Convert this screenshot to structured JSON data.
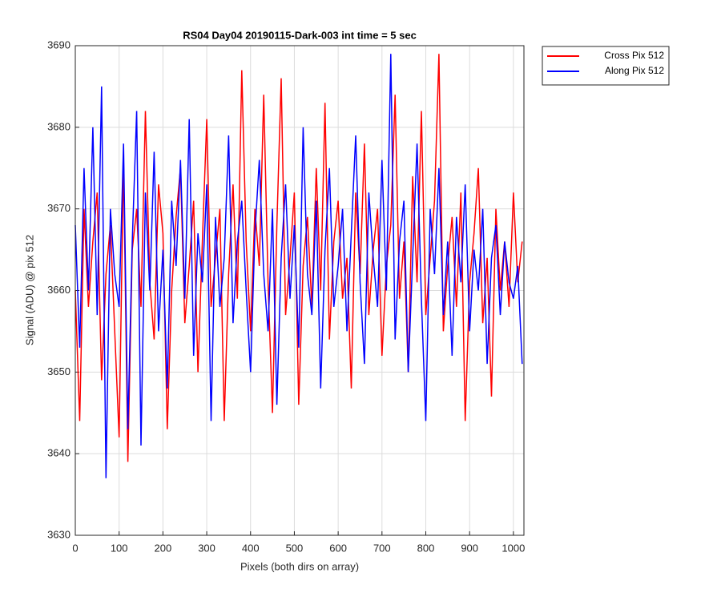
{
  "chart_data": {
    "type": "line",
    "title": "RS04 Day04 20190115-Dark-003 int time = 5 sec",
    "xlabel": "Pixels (both dirs on array)",
    "ylabel": "Signal (ADU) @ pix 512",
    "x": [
      0,
      10,
      20,
      30,
      40,
      50,
      60,
      70,
      80,
      90,
      100,
      110,
      120,
      130,
      140,
      150,
      160,
      170,
      180,
      190,
      200,
      210,
      220,
      230,
      240,
      250,
      260,
      270,
      280,
      290,
      300,
      310,
      320,
      330,
      340,
      350,
      360,
      370,
      380,
      390,
      400,
      410,
      420,
      430,
      440,
      450,
      460,
      470,
      480,
      490,
      500,
      510,
      520,
      530,
      540,
      550,
      560,
      570,
      580,
      590,
      600,
      610,
      620,
      630,
      640,
      650,
      660,
      670,
      680,
      690,
      700,
      710,
      720,
      730,
      740,
      750,
      760,
      770,
      780,
      790,
      800,
      810,
      820,
      830,
      840,
      850,
      860,
      870,
      880,
      890,
      900,
      910,
      920,
      930,
      940,
      950,
      960,
      970,
      980,
      990,
      1000,
      1010,
      1020
    ],
    "series": [
      {
        "name": "Cross Pix 512",
        "color": "#ff0000",
        "values": [
          3660,
          3644,
          3670,
          3658,
          3666,
          3672,
          3649,
          3662,
          3668,
          3655,
          3642,
          3676,
          3639,
          3665,
          3670,
          3658,
          3682,
          3661,
          3654,
          3673,
          3667,
          3643,
          3660,
          3669,
          3675,
          3656,
          3663,
          3671,
          3650,
          3666,
          3681,
          3658,
          3664,
          3670,
          3644,
          3662,
          3673,
          3659,
          3687,
          3666,
          3655,
          3670,
          3663,
          3684,
          3661,
          3645,
          3668,
          3686,
          3657,
          3664,
          3672,
          3646,
          3663,
          3669,
          3658,
          3675,
          3660,
          3683,
          3654,
          3666,
          3671,
          3659,
          3664,
          3648,
          3672,
          3662,
          3678,
          3657,
          3665,
          3670,
          3652,
          3663,
          3668,
          3684,
          3659,
          3666,
          3650,
          3674,
          3661,
          3682,
          3657,
          3664,
          3671,
          3689,
          3655,
          3663,
          3669,
          3658,
          3672,
          3644,
          3661,
          3667,
          3675,
          3656,
          3664,
          3647,
          3670,
          3660,
          3666,
          3658,
          3672,
          3661,
          3666
        ]
      },
      {
        "name": "Along Pix 512",
        "color": "#0000ff",
        "values": [
          3668,
          3653,
          3675,
          3660,
          3680,
          3657,
          3685,
          3637,
          3670,
          3662,
          3658,
          3678,
          3643,
          3666,
          3682,
          3641,
          3672,
          3660,
          3677,
          3655,
          3665,
          3648,
          3671,
          3663,
          3676,
          3659,
          3681,
          3652,
          3667,
          3661,
          3673,
          3644,
          3669,
          3658,
          3664,
          3679,
          3656,
          3666,
          3671,
          3660,
          3650,
          3667,
          3676,
          3662,
          3655,
          3670,
          3646,
          3664,
          3673,
          3659,
          3668,
          3653,
          3680,
          3662,
          3657,
          3671,
          3648,
          3665,
          3675,
          3658,
          3663,
          3670,
          3655,
          3667,
          3679,
          3661,
          3651,
          3672,
          3664,
          3658,
          3676,
          3660,
          3689,
          3654,
          3666,
          3671,
          3650,
          3664,
          3678,
          3659,
          3644,
          3670,
          3662,
          3675,
          3657,
          3666,
          3652,
          3669,
          3661,
          3673,
          3655,
          3665,
          3660,
          3670,
          3651,
          3664,
          3668,
          3657,
          3666,
          3661,
          3659,
          3663,
          3651
        ]
      }
    ],
    "xlim": [
      0,
      1024
    ],
    "ylim": [
      3630,
      3690
    ],
    "xticks": [
      0,
      100,
      200,
      300,
      400,
      500,
      600,
      700,
      800,
      900,
      1000
    ],
    "yticks": [
      3630,
      3640,
      3650,
      3660,
      3670,
      3680,
      3690
    ],
    "grid": true,
    "legend": "outside-top-right"
  }
}
